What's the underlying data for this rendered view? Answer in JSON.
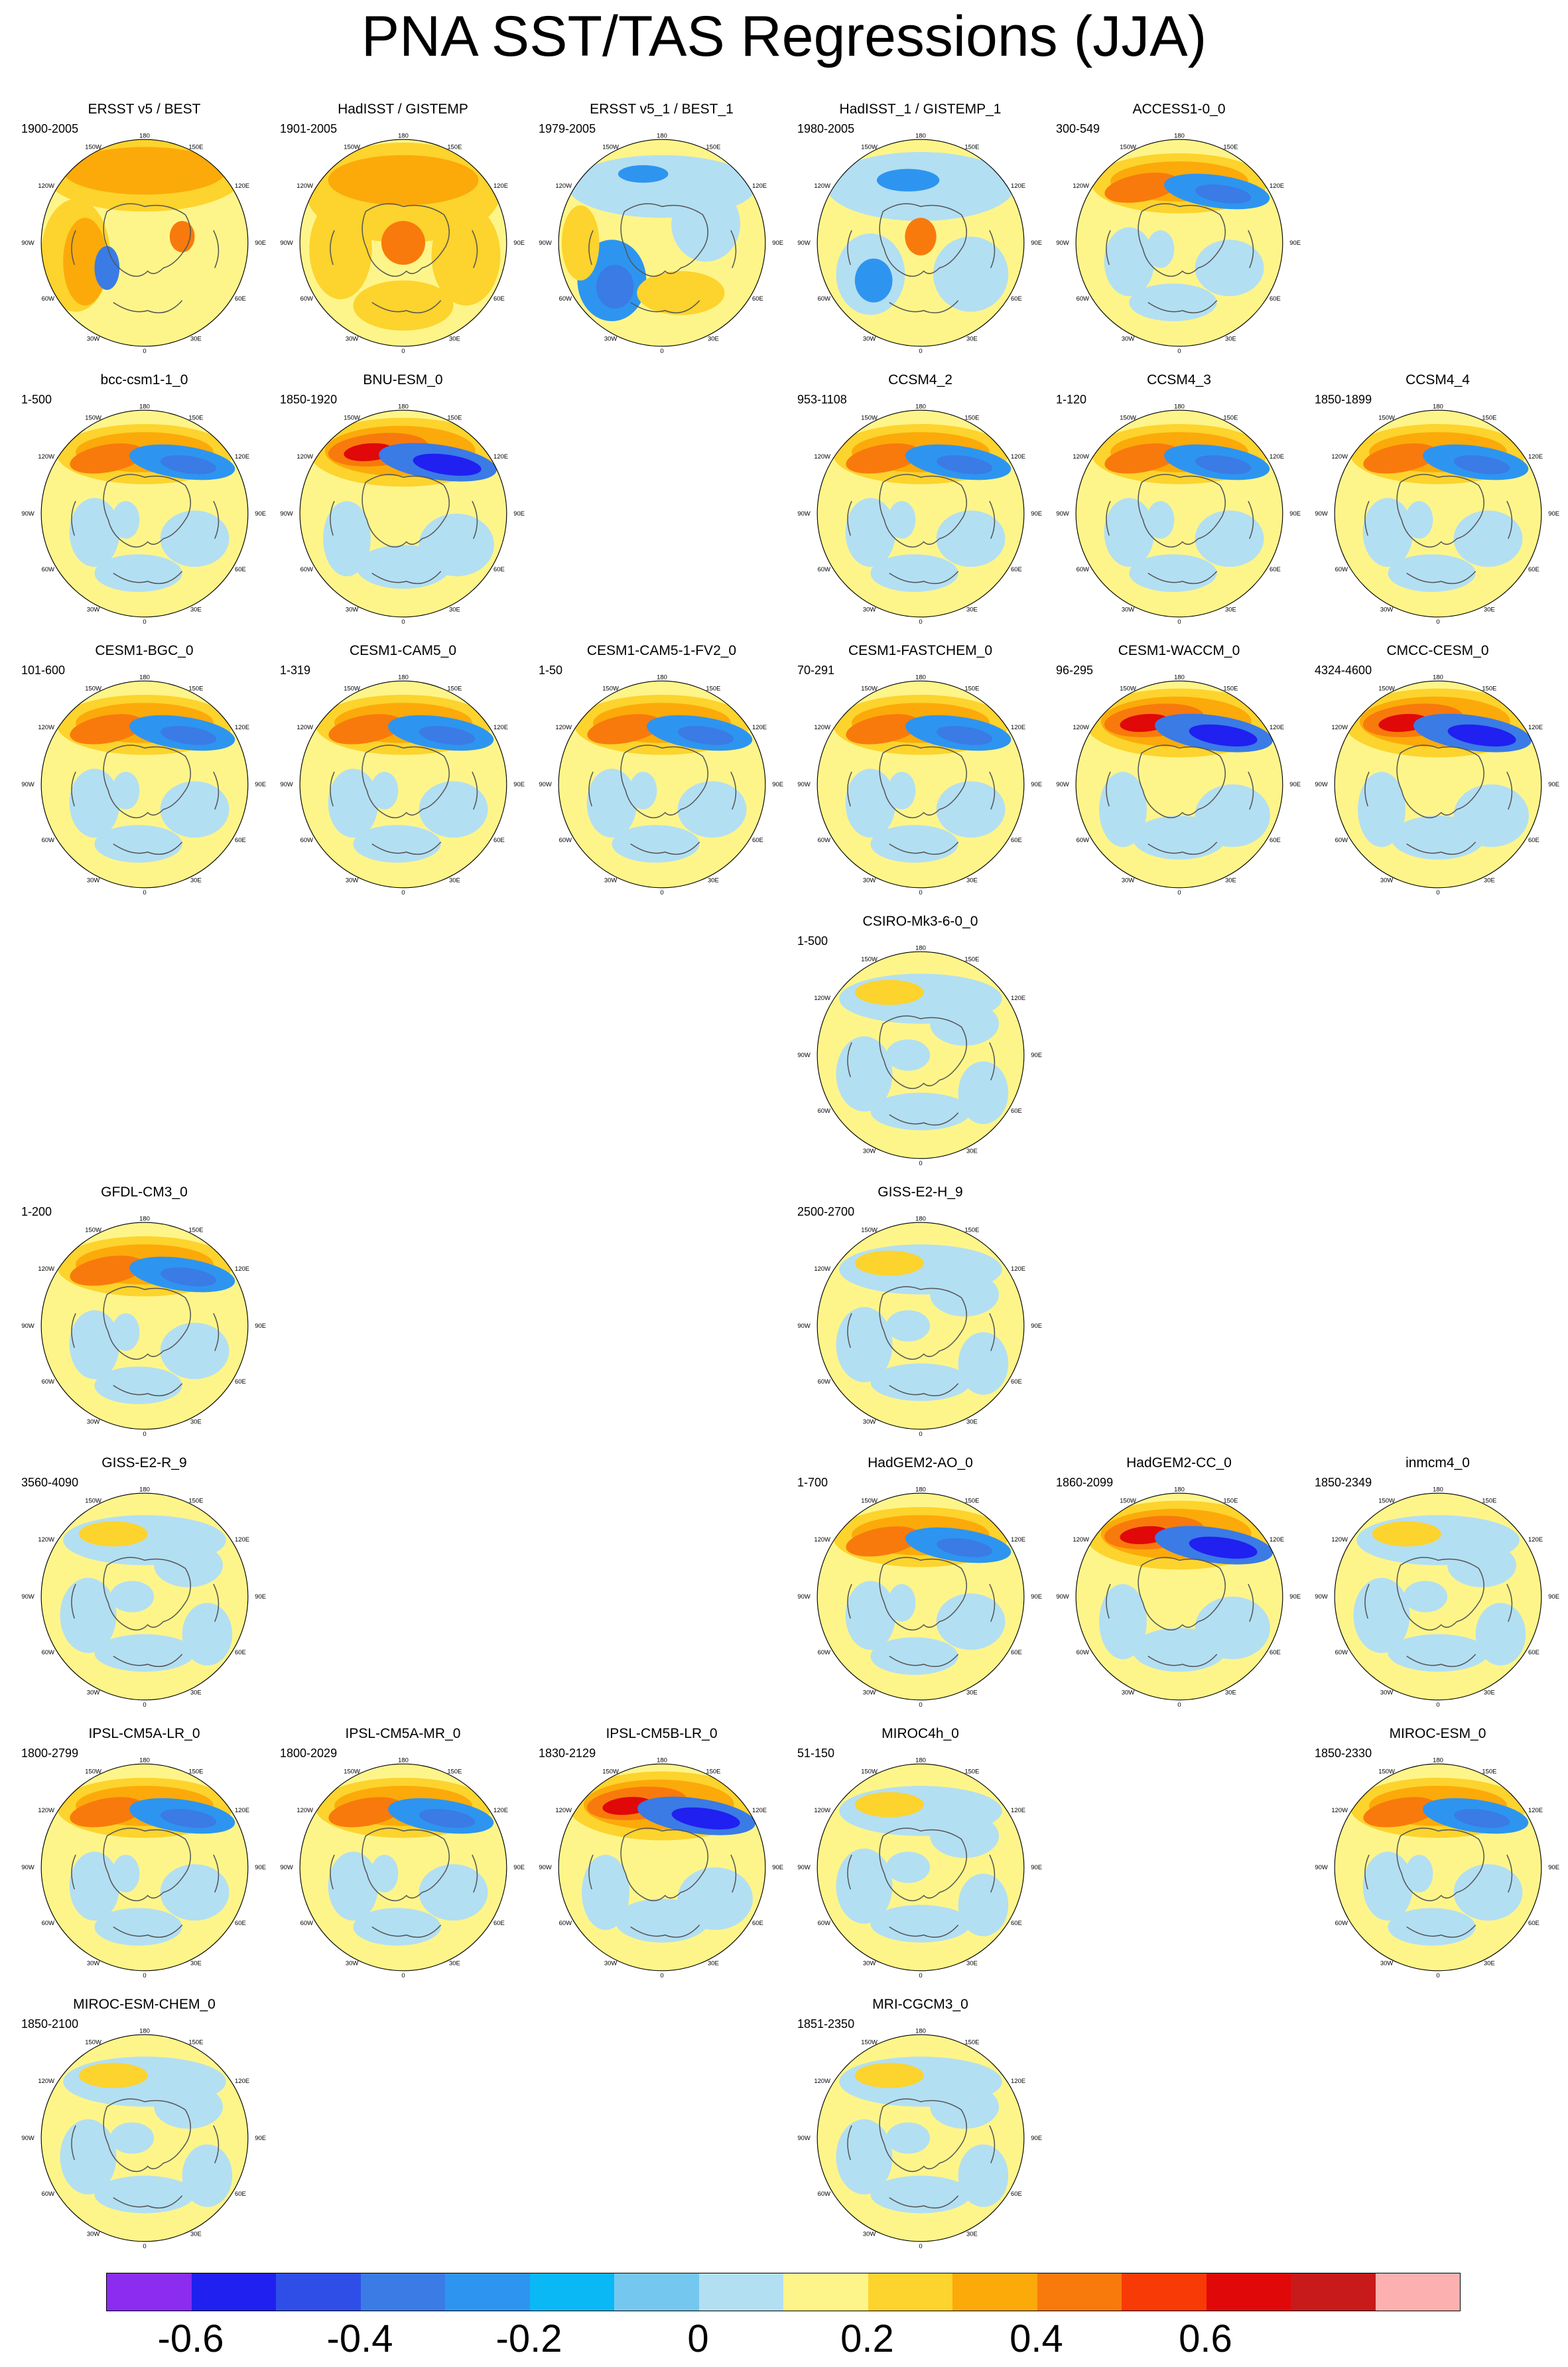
{
  "title": "PNA SST/TAS Regressions (JJA)",
  "panels": [
    {
      "name": "ERSST v5 / BEST",
      "years": "1900-2005",
      "row": 0,
      "col": 0,
      "pattern": "obs_warm"
    },
    {
      "name": "HadISST / GISTEMP",
      "years": "1901-2005",
      "row": 0,
      "col": 1,
      "pattern": "obs_warm2"
    },
    {
      "name": "ERSST v5_1 / BEST_1",
      "years": "1979-2005",
      "row": 0,
      "col": 2,
      "pattern": "obs_cool"
    },
    {
      "name": "HadISST_1 / GISTEMP_1",
      "years": "1980-2005",
      "row": 0,
      "col": 3,
      "pattern": "obs_cool2"
    },
    {
      "name": "ACCESS1-0_0",
      "years": "300-549",
      "row": 0,
      "col": 4,
      "pattern": "pna"
    },
    {
      "name": "bcc-csm1-1_0",
      "years": "1-500",
      "row": 1,
      "col": 0,
      "pattern": "pna"
    },
    {
      "name": "BNU-ESM_0",
      "years": "1850-1920",
      "row": 1,
      "col": 1,
      "pattern": "strong"
    },
    {
      "name": "CCSM4_2",
      "years": "953-1108",
      "row": 1,
      "col": 3,
      "pattern": "pna"
    },
    {
      "name": "CCSM4_3",
      "years": "1-120",
      "row": 1,
      "col": 4,
      "pattern": "pna"
    },
    {
      "name": "CCSM4_4",
      "years": "1850-1899",
      "row": 1,
      "col": 5,
      "pattern": "pna"
    },
    {
      "name": "CESM1-BGC_0",
      "years": "101-600",
      "row": 2,
      "col": 0,
      "pattern": "pna"
    },
    {
      "name": "CESM1-CAM5_0",
      "years": "1-319",
      "row": 2,
      "col": 1,
      "pattern": "pna"
    },
    {
      "name": "CESM1-CAM5-1-FV2_0",
      "years": "1-50",
      "row": 2,
      "col": 2,
      "pattern": "pna"
    },
    {
      "name": "CESM1-FASTCHEM_0",
      "years": "70-291",
      "row": 2,
      "col": 3,
      "pattern": "pna"
    },
    {
      "name": "CESM1-WACCM_0",
      "years": "96-295",
      "row": 2,
      "col": 4,
      "pattern": "strong"
    },
    {
      "name": "CMCC-CESM_0",
      "years": "4324-4600",
      "row": 2,
      "col": 5,
      "pattern": "strong"
    },
    {
      "name": "CSIRO-Mk3-6-0_0",
      "years": "1-500",
      "row": 3,
      "col": 3,
      "pattern": "weak"
    },
    {
      "name": "GFDL-CM3_0",
      "years": "1-200",
      "row": 4,
      "col": 0,
      "pattern": "pna"
    },
    {
      "name": "GISS-E2-H_9",
      "years": "2500-2700",
      "row": 4,
      "col": 3,
      "pattern": "weak"
    },
    {
      "name": "GISS-E2-R_9",
      "years": "3560-4090",
      "row": 5,
      "col": 0,
      "pattern": "weak"
    },
    {
      "name": "HadGEM2-AO_0",
      "years": "1-700",
      "row": 5,
      "col": 3,
      "pattern": "pna"
    },
    {
      "name": "HadGEM2-CC_0",
      "years": "1860-2099",
      "row": 5,
      "col": 4,
      "pattern": "strong"
    },
    {
      "name": "inmcm4_0",
      "years": "1850-2349",
      "row": 5,
      "col": 5,
      "pattern": "weak"
    },
    {
      "name": "IPSL-CM5A-LR_0",
      "years": "1800-2799",
      "row": 6,
      "col": 0,
      "pattern": "pna"
    },
    {
      "name": "IPSL-CM5A-MR_0",
      "years": "1800-2029",
      "row": 6,
      "col": 1,
      "pattern": "pna"
    },
    {
      "name": "IPSL-CM5B-LR_0",
      "years": "1830-2129",
      "row": 6,
      "col": 2,
      "pattern": "strong"
    },
    {
      "name": "MIROC4h_0",
      "years": "51-150",
      "row": 6,
      "col": 3,
      "pattern": "weak"
    },
    {
      "name": "MIROC-ESM_0",
      "years": "1850-2330",
      "row": 6,
      "col": 5,
      "pattern": "pna"
    },
    {
      "name": "MIROC-ESM-CHEM_0",
      "years": "1850-2100",
      "row": 7,
      "col": 0,
      "pattern": "weak"
    },
    {
      "name": "MRI-CGCM3_0",
      "years": "1851-2350",
      "row": 7,
      "col": 3,
      "pattern": "weak"
    }
  ],
  "map_labels": {
    "top": "180",
    "bottom": "0",
    "left": "90W",
    "right": "90E",
    "ul1": "150W",
    "ul2": "120W",
    "ur1": "150E",
    "ur2": "120E",
    "ll1": "60W",
    "ll2": "30W",
    "lr1": "60E",
    "lr2": "30E"
  },
  "colorbar": {
    "colors": [
      "#8b2cf0",
      "#2020f0",
      "#2f4ee8",
      "#3a7be6",
      "#2d95f0",
      "#0ab8f5",
      "#74c8f0",
      "#b3dff2",
      "#fef58a",
      "#fdd32d",
      "#fbaa0a",
      "#f87a0c",
      "#f83a06",
      "#e00808",
      "#c81a1a",
      "#fdb0b0"
    ],
    "labels": [
      "-0.6",
      "-0.4",
      "-0.2",
      "0",
      "0.2",
      "0.4",
      "0.6"
    ]
  }
}
